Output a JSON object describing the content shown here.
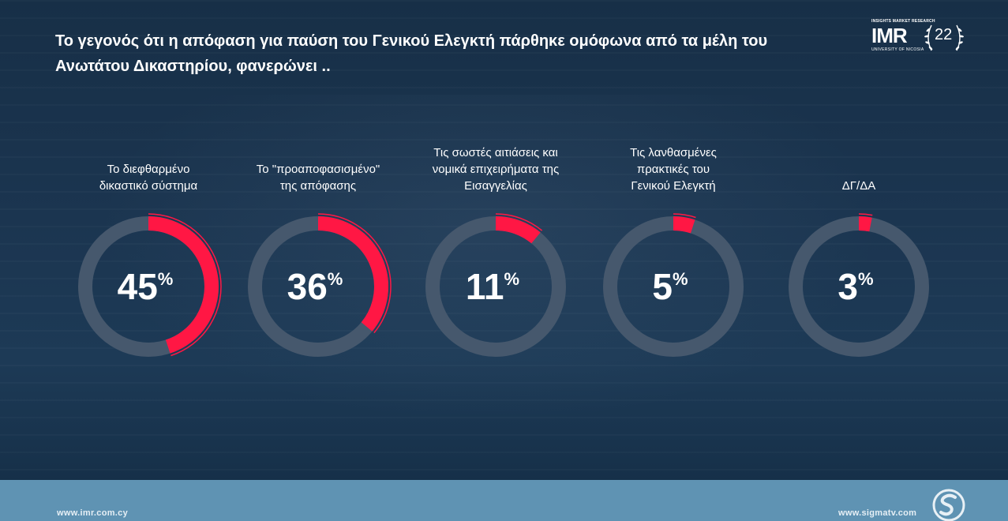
{
  "title": "Το γεγονός ότι η απόφαση για παύση του Γενικού Ελεγκτή πάρθηκε ομόφωνα από τα μέλη του Ανωτάτου Δικαστηρίου, φανερώνει ..",
  "logo": {
    "tagline": "INSIGHTS MARKET RESEARCH",
    "name": "IMR",
    "university": "UNIVERSITY OF NICOSIA",
    "years": "22"
  },
  "footer": {
    "left_url": "www.imr.com.cy",
    "right_url": "www.sigmatv.com"
  },
  "colors": {
    "accent": "#ff1744",
    "ring_track": "#46586d",
    "text": "#ffffff"
  },
  "chart_data": {
    "type": "donut",
    "title": "",
    "unit": "%",
    "max": 100,
    "categories": [
      {
        "label_lines": [
          "Το διεφθαρμένο",
          "δικαστικό σύστημα"
        ],
        "value": 45,
        "display": "45"
      },
      {
        "label_lines": [
          "Το \"προαποφασισμένο\"",
          "της απόφασης"
        ],
        "value": 36,
        "display": "36"
      },
      {
        "label_lines": [
          "Τις σωστές αιτιάσεις και",
          "νομικά επιχειρήματα της",
          "Εισαγγελίας"
        ],
        "value": 11,
        "display": "11"
      },
      {
        "label_lines": [
          "Τις λανθασμένες",
          "πρακτικές του",
          "Γενικού Ελεγκτή"
        ],
        "value": 5,
        "display": "5"
      },
      {
        "label_lines": [
          "ΔΓ/ΔΑ"
        ],
        "value": 3,
        "display": "3"
      }
    ]
  }
}
